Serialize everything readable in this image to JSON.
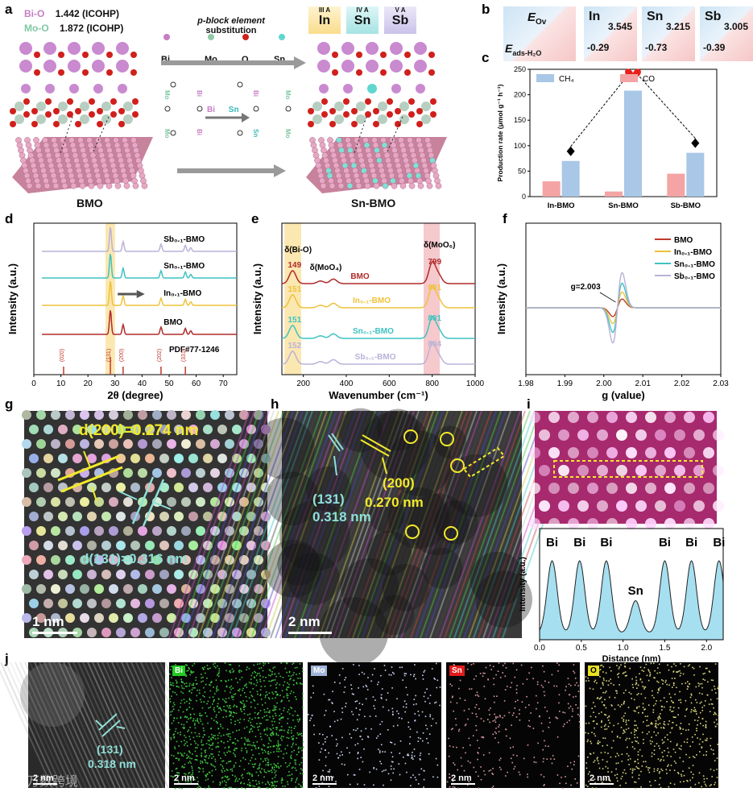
{
  "panel_labels": {
    "a": "a",
    "b": "b",
    "c": "c",
    "d": "d",
    "e": "e",
    "f": "f",
    "g": "g",
    "h": "h",
    "i": "i",
    "j": "j"
  },
  "panel_a": {
    "bio_bond": "Bi-O",
    "bio_value": "1.442 (ICOHP)",
    "moo_bond": "Mo-O",
    "moo_value": "1.872 (ICOHP)",
    "substitution_title_1": "p-block element",
    "substitution_title_2": "substitution",
    "legend": [
      "Bi",
      "Mo",
      "O",
      "Sn"
    ],
    "groups": [
      {
        "group": "III A",
        "element": "In"
      },
      {
        "group": "IV A",
        "element": "Sn"
      },
      {
        "group": "V A",
        "element": "Sb"
      }
    ],
    "schematic_labels": {
      "mo": "Mo",
      "bi": "Bi",
      "o": "O",
      "sn": "Sn",
      "arrow_from": "Bi",
      "arrow_to": "Sn"
    },
    "left_caption": "BMO",
    "right_caption": "Sn-BMO"
  },
  "panel_b": {
    "corner_top": "E",
    "corner_top_sub": "Ov",
    "corner_bottom": "E",
    "corner_bottom_sub": "ads-H₂O",
    "cells": [
      {
        "element": "In",
        "e_ov": "3.545",
        "e_ads": "-0.29"
      },
      {
        "element": "Sn",
        "e_ov": "3.215",
        "e_ads": "-0.73"
      },
      {
        "element": "Sb",
        "e_ov": "3.005",
        "e_ads": "-0.39"
      }
    ]
  },
  "chart_data": [
    {
      "id": "c",
      "type": "bar",
      "categories": [
        "In-BMO",
        "Sn-BMO",
        "Sb-BMO"
      ],
      "series": [
        {
          "name": "CO",
          "values": [
            30,
            10,
            45
          ],
          "color": "#f4a4a4"
        },
        {
          "name": "CH₄",
          "values": [
            70,
            208,
            86
          ],
          "color": "#a9c7e6"
        }
      ],
      "ylabel": "Production rate (μmol g⁻¹ h⁻¹)",
      "ylim": [
        0,
        250
      ],
      "yticks": [
        0,
        50,
        100,
        150,
        200,
        250
      ],
      "legend": [
        "CH₄",
        "CO"
      ]
    },
    {
      "id": "d",
      "type": "line",
      "xlabel": "2θ (degree)",
      "ylabel": "Intensity (a.u.)",
      "xlim": [
        0,
        75
      ],
      "xticks": [
        0,
        10,
        20,
        30,
        40,
        50,
        60,
        70
      ],
      "series": [
        {
          "name": "Sb₀.₁-BMO",
          "color": "#b9b2d8"
        },
        {
          "name": "Sn₀.₁-BMO",
          "color": "#3fc2c2"
        },
        {
          "name": "In₀.₁-BMO",
          "color": "#eec23a"
        },
        {
          "name": "BMO",
          "color": "#b02a2a"
        }
      ],
      "reference": "PDF#77-1246",
      "ref_peaks": [
        {
          "label": "(020)",
          "x": 11
        },
        {
          "label": "(131)",
          "x": 28.3
        },
        {
          "label": "(200)",
          "x": 33
        },
        {
          "label": "(202)",
          "x": 47
        },
        {
          "label": "(331)",
          "x": 56
        }
      ]
    },
    {
      "id": "e",
      "type": "line",
      "xlabel": "Wavenumber (cm⁻¹)",
      "ylabel": "Intensity (a.u.)",
      "xlim": [
        100,
        1000
      ],
      "xticks": [
        200,
        400,
        600,
        800,
        1000
      ],
      "annotations": [
        "δ(Bi-O)",
        "δ(MoO₄)",
        "δ(MoO₆)"
      ],
      "series": [
        {
          "name": "BMO",
          "color": "#b02a2a",
          "biO": "149",
          "moO6": "799"
        },
        {
          "name": "In₀.₁-BMO",
          "color": "#eec23a",
          "biO": "151",
          "moO6": "801"
        },
        {
          "name": "Sn₀.₁-BMO",
          "color": "#3fc2c2",
          "biO": "151",
          "moO6": "801"
        },
        {
          "name": "Sb₀.₁-BMO",
          "color": "#b9b2d8",
          "biO": "152",
          "moO6": "804"
        }
      ]
    },
    {
      "id": "f",
      "type": "line",
      "xlabel": "g (value)",
      "ylabel": "Intensity (a.u.)",
      "xlim": [
        1.98,
        2.03
      ],
      "xticks": [
        "1.98",
        "1.99",
        "2.00",
        "2.01",
        "2.02",
        "2.03"
      ],
      "annotation": "g=2.003",
      "series": [
        {
          "name": "BMO",
          "color": "#c0392b",
          "amp": 0.25
        },
        {
          "name": "In₀.₁-BMO",
          "color": "#eec23a",
          "amp": 0.45
        },
        {
          "name": "Sn₀.₁-BMO",
          "color": "#3fc2c2",
          "amp": 0.7
        },
        {
          "name": "Sb₀.₁-BMO",
          "color": "#b9b2d8",
          "amp": 1.0
        }
      ]
    },
    {
      "id": "i",
      "type": "line",
      "xlabel": "Distance (nm)",
      "ylabel": "Intensity (a.u.)",
      "xlim": [
        0,
        2.2
      ],
      "xticks": [
        "0.0",
        "0.5",
        "1.0",
        "1.5",
        "2.0"
      ],
      "peaks": [
        {
          "label": "Bi",
          "x": 0.15
        },
        {
          "label": "Bi",
          "x": 0.48
        },
        {
          "label": "Bi",
          "x": 0.8
        },
        {
          "label": "Sn",
          "x": 1.15
        },
        {
          "label": "Bi",
          "x": 1.5
        },
        {
          "label": "Bi",
          "x": 1.82
        },
        {
          "label": "Bi",
          "x": 2.15
        }
      ]
    }
  ],
  "panel_g": {
    "d200": "d(200)=0.274 nm",
    "d131": "d(131)=0.316 nm",
    "scale": "1 nm"
  },
  "panel_h": {
    "plane_131": "(131)",
    "d_131": "0.318 nm",
    "plane_200": "(200)",
    "d_200": "0.270 nm",
    "scale": "2 nm"
  },
  "panel_j": {
    "plane": "(131)",
    "d": "0.318 nm",
    "scale": "2 nm",
    "maps": [
      {
        "element": "Bi",
        "tag_color": "#22cc22",
        "dot_color": "#3ec43e"
      },
      {
        "element": "Mo",
        "tag_color": "#9fb4d8",
        "dot_color": "#c8d2f0"
      },
      {
        "element": "Sn",
        "tag_color": "#e21b1b",
        "dot_color": "#d89aa0"
      },
      {
        "element": "O",
        "tag_color": "#e8e020",
        "dot_color": "#d8d27a"
      }
    ],
    "watermark": "万数跨境"
  }
}
